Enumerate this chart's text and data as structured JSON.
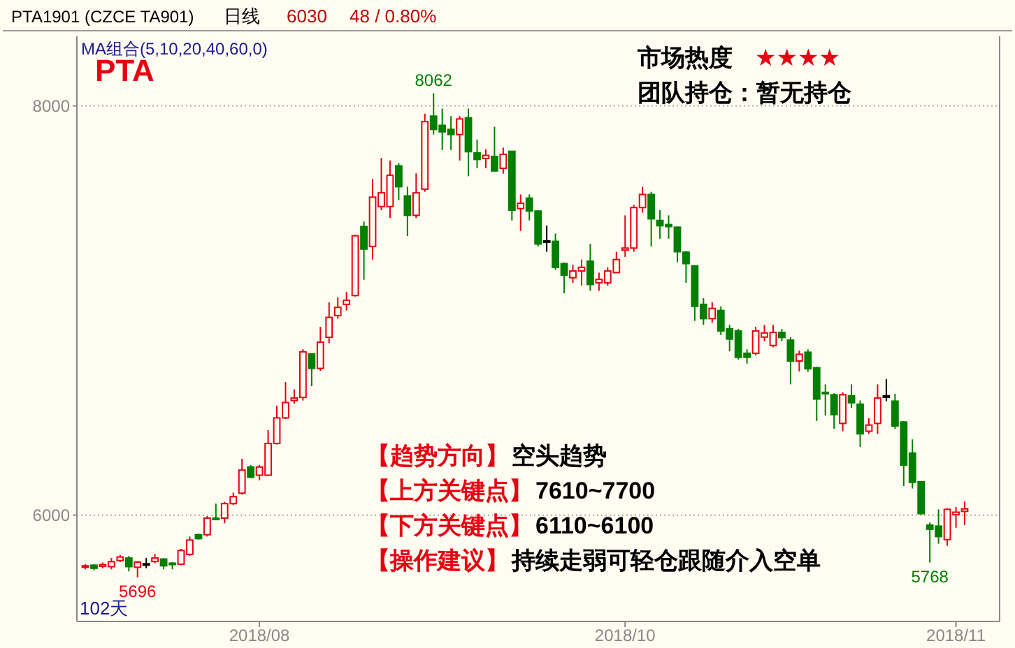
{
  "chart_data": {
    "type": "candlestick",
    "title": "PTA",
    "categories": [
      null,
      null,
      null,
      null,
      null,
      null,
      null,
      null,
      null,
      null,
      null,
      null,
      null,
      null,
      null,
      null,
      null,
      null,
      null,
      null,
      "2018/08",
      null,
      null,
      null,
      null,
      null,
      null,
      null,
      null,
      null,
      null,
      null,
      null,
      null,
      null,
      null,
      null,
      null,
      null,
      null,
      null,
      null,
      null,
      null,
      null,
      null,
      null,
      null,
      null,
      null,
      null,
      null,
      null,
      null,
      null,
      null,
      null,
      null,
      null,
      null,
      null,
      null,
      "2018/10",
      null,
      null,
      null,
      null,
      null,
      null,
      null,
      null,
      null,
      null,
      null,
      null,
      null,
      null,
      null,
      null,
      null,
      null,
      null,
      null,
      null,
      null,
      null,
      null,
      null,
      null,
      null,
      null,
      null,
      null,
      null,
      null,
      null,
      null,
      null,
      null,
      null,
      "2018/11",
      null
    ],
    "ohlc": [
      [
        5745,
        5760,
        5735,
        5752
      ],
      [
        5755,
        5760,
        5730,
        5740
      ],
      [
        5750,
        5768,
        5740,
        5758
      ],
      [
        5748,
        5790,
        5735,
        5772
      ],
      [
        5778,
        5805,
        5770,
        5795
      ],
      [
        5790,
        5800,
        5725,
        5748
      ],
      [
        5745,
        5775,
        5696,
        5770
      ],
      [
        5760,
        5790,
        5740,
        5762
      ],
      [
        5773,
        5810,
        5765,
        5790
      ],
      [
        5785,
        5790,
        5735,
        5752
      ],
      [
        5765,
        5770,
        5735,
        5758
      ],
      [
        5760,
        5835,
        5755,
        5827
      ],
      [
        5808,
        5895,
        5800,
        5878
      ],
      [
        5904,
        5910,
        5880,
        5885
      ],
      [
        5904,
        5995,
        5895,
        5985
      ],
      [
        5985,
        6056,
        5975,
        5978
      ],
      [
        5985,
        6065,
        5960,
        6056
      ],
      [
        6056,
        6110,
        6050,
        6090
      ],
      [
        6107,
        6275,
        6100,
        6220
      ],
      [
        6235,
        6245,
        6180,
        6185
      ],
      [
        6195,
        6245,
        6170,
        6235
      ],
      [
        6195,
        6415,
        6190,
        6350
      ],
      [
        6350,
        6535,
        6345,
        6475
      ],
      [
        6475,
        6650,
        6470,
        6550
      ],
      [
        6560,
        6615,
        6545,
        6572
      ],
      [
        6575,
        6810,
        6560,
        6798
      ],
      [
        6788,
        6790,
        6630,
        6717
      ],
      [
        6717,
        6920,
        6705,
        6845
      ],
      [
        6869,
        7040,
        6840,
        6966
      ],
      [
        6975,
        7065,
        6960,
        7015
      ],
      [
        7030,
        7090,
        7000,
        7050
      ],
      [
        7073,
        7370,
        7068,
        7365
      ],
      [
        7410,
        7435,
        7150,
        7300
      ],
      [
        7313,
        7643,
        7249,
        7554
      ],
      [
        7508,
        7745,
        7490,
        7575
      ],
      [
        7508,
        7733,
        7452,
        7661
      ],
      [
        7707,
        7720,
        7540,
        7605
      ],
      [
        7560,
        7605,
        7364,
        7465
      ],
      [
        7465,
        7670,
        7452,
        7575
      ],
      [
        7593,
        7962,
        7580,
        7923
      ],
      [
        7950,
        8062,
        7860,
        7885
      ],
      [
        7905,
        7987,
        7784,
        7873
      ],
      [
        7885,
        7950,
        7784,
        7860
      ],
      [
        7860,
        7950,
        7733,
        7936
      ],
      [
        7942,
        7987,
        7656,
        7776
      ],
      [
        7770,
        7835,
        7695,
        7738
      ],
      [
        7743,
        7788,
        7695,
        7758
      ],
      [
        7753,
        7898,
        7680,
        7682
      ],
      [
        7695,
        7796,
        7669,
        7763
      ],
      [
        7778,
        7780,
        7440,
        7490
      ],
      [
        7498,
        7567,
        7389,
        7524
      ],
      [
        7549,
        7567,
        7440,
        7486
      ],
      [
        7486,
        7490,
        7313,
        7325
      ],
      [
        7338,
        7415,
        7287,
        7340
      ],
      [
        7338,
        7376,
        7198,
        7211
      ],
      [
        7229,
        7235,
        7084,
        7173
      ],
      [
        7160,
        7224,
        7135,
        7193
      ],
      [
        7193,
        7249,
        7122,
        7211
      ],
      [
        7241,
        7325,
        7096,
        7127
      ],
      [
        7135,
        7185,
        7096,
        7152
      ],
      [
        7135,
        7211,
        7122,
        7193
      ],
      [
        7185,
        7287,
        7185,
        7249
      ],
      [
        7295,
        7465,
        7262,
        7305
      ],
      [
        7305,
        7516,
        7287,
        7503
      ],
      [
        7503,
        7605,
        7478,
        7567
      ],
      [
        7567,
        7580,
        7313,
        7448
      ],
      [
        7440,
        7490,
        7351,
        7414
      ],
      [
        7420,
        7465,
        7351,
        7410
      ],
      [
        7407,
        7410,
        7236,
        7287
      ],
      [
        7285,
        7290,
        7135,
        7229
      ],
      [
        7218,
        7220,
        6949,
        7020
      ],
      [
        7030,
        7060,
        6930,
        6960
      ],
      [
        6960,
        7040,
        6940,
        7010
      ],
      [
        7000,
        7020,
        6880,
        6900
      ],
      [
        6910,
        6930,
        6800,
        6860
      ],
      [
        6900,
        6910,
        6760,
        6771
      ],
      [
        6791,
        6810,
        6740,
        6771
      ],
      [
        6791,
        6920,
        6780,
        6900
      ],
      [
        6870,
        6930,
        6850,
        6890
      ],
      [
        6829,
        6930,
        6820,
        6893
      ],
      [
        6893,
        6910,
        6850,
        6868
      ],
      [
        6855,
        6870,
        6639,
        6753
      ],
      [
        6753,
        6804,
        6702,
        6786
      ],
      [
        6796,
        6810,
        6700,
        6715
      ],
      [
        6720,
        6725,
        6460,
        6567
      ],
      [
        6600,
        6639,
        6486,
        6593
      ],
      [
        6588,
        6595,
        6422,
        6491
      ],
      [
        6448,
        6600,
        6410,
        6588
      ],
      [
        6583,
        6639,
        6524,
        6549
      ],
      [
        6542,
        6560,
        6333,
        6397
      ],
      [
        6410,
        6473,
        6397,
        6440
      ],
      [
        6448,
        6639,
        6397,
        6572
      ],
      [
        6580,
        6664,
        6557,
        6583
      ],
      [
        6557,
        6593,
        6422,
        6435
      ],
      [
        6455,
        6460,
        6142,
        6244
      ],
      [
        6303,
        6370,
        6130,
        6160
      ],
      [
        6163,
        6165,
        6002,
        6007
      ],
      [
        5951,
        5964,
        5768,
        5931
      ],
      [
        5946,
        6028,
        5860,
        5895
      ],
      [
        5880,
        6033,
        5850,
        6028
      ],
      [
        6002,
        6040,
        5938,
        6014
      ],
      [
        6018,
        6066,
        5951,
        6030
      ]
    ],
    "colors": [
      "#e60012",
      "#007f00",
      "#e60012",
      "#e60012",
      "#e60012",
      "#007f00",
      "#e60012",
      "#000000",
      "#e60012",
      "#007f00",
      "#007f00",
      "#e60012",
      "#e60012",
      "#007f00",
      "#e60012",
      "#007f00",
      "#e60012",
      "#e60012",
      "#e60012",
      "#007f00",
      "#e60012",
      "#e60012",
      "#e60012",
      "#e60012",
      "#e60012",
      "#e60012",
      "#007f00",
      "#e60012",
      "#e60012",
      "#e60012",
      "#e60012",
      "#e60012",
      "#007f00",
      "#e60012",
      "#e60012",
      "#e60012",
      "#007f00",
      "#007f00",
      "#e60012",
      "#e60012",
      "#007f00",
      "#007f00",
      "#007f00",
      "#e60012",
      "#007f00",
      "#007f00",
      "#e60012",
      "#007f00",
      "#e60012",
      "#007f00",
      "#e60012",
      "#007f00",
      "#007f00",
      "#000000",
      "#007f00",
      "#007f00",
      "#e60012",
      "#e60012",
      "#007f00",
      "#e60012",
      "#e60012",
      "#e60012",
      "#e60012",
      "#e60012",
      "#e60012",
      "#007f00",
      "#007f00",
      "#007f00",
      "#007f00",
      "#007f00",
      "#007f00",
      "#007f00",
      "#e60012",
      "#007f00",
      "#007f00",
      "#007f00",
      "#007f00",
      "#e60012",
      "#e60012",
      "#e60012",
      "#007f00",
      "#007f00",
      "#e60012",
      "#007f00",
      "#007f00",
      "#007f00",
      "#007f00",
      "#e60012",
      "#007f00",
      "#007f00",
      "#e60012",
      "#e60012",
      "#000000",
      "#007f00",
      "#007f00",
      "#007f00",
      "#007f00",
      "#007f00",
      "#007f00",
      "#e60012",
      "#e60012",
      "#e60012"
    ],
    "ylim": [
      5480,
      8340
    ],
    "yticks": [
      6000,
      8000
    ],
    "grid": "y",
    "annotations": [
      "PTA1901 (CZCE TA901)",
      "日线",
      "6030",
      "48 / 0.80%",
      "MA组合(5,10,20,40,60,0)",
      "市场热度",
      "★★★★",
      "团队持仓：暂无持仓",
      "【趋势方向】",
      "空头趋势",
      "【上方关键点】",
      "7610~7700",
      "【下方关键点】",
      "6110~6100",
      "【操作建议】",
      "持续走弱可轻仓跟随介入空单",
      "102天",
      {
        "text": "8062",
        "y": 8062
      },
      {
        "text": "5768",
        "y": 5768
      },
      {
        "text": "5696",
        "y": 5696
      }
    ]
  }
}
